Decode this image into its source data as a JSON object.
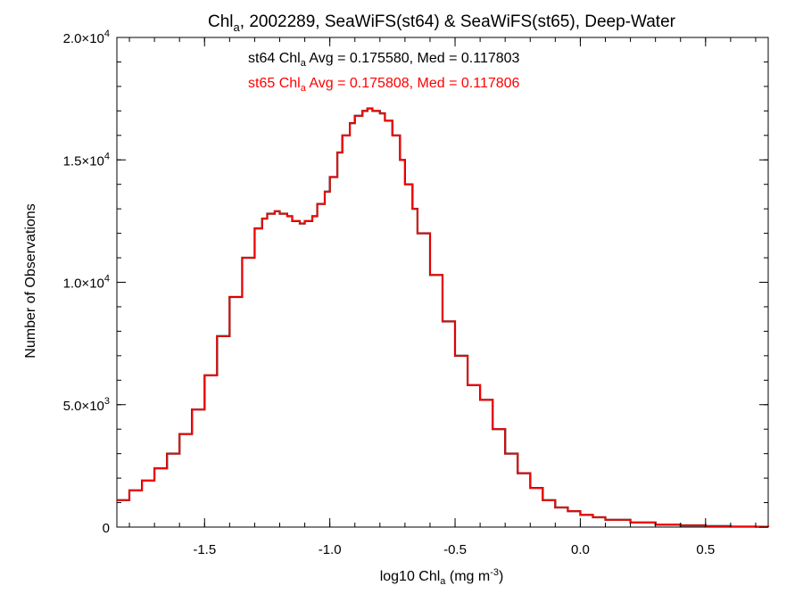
{
  "chart_data": {
    "type": "line",
    "title": {
      "prefix": "Chl",
      "sub": "a",
      "suffix": ", 2002289, SeaWiFS(st64) & SeaWiFS(st65), Deep-Water"
    },
    "xlabel": {
      "prefix": "log10 Chl",
      "sub": "a",
      "mid": " (mg m",
      "sup": "-3",
      "suffix": ")"
    },
    "ylabel": "Number of Observations",
    "xlim": [
      -1.85,
      0.75
    ],
    "ylim": [
      0,
      20000
    ],
    "x_ticks": [
      {
        "value": -1.5,
        "label": "-1.5"
      },
      {
        "value": -1.0,
        "label": "-1.0"
      },
      {
        "value": -0.5,
        "label": "-0.5"
      },
      {
        "value": 0.0,
        "label": "0.0"
      },
      {
        "value": 0.5,
        "label": "0.5"
      }
    ],
    "y_ticks": [
      {
        "value": 0,
        "mant": "0",
        "exp": ""
      },
      {
        "value": 5000,
        "mant": "5.0×10",
        "exp": "3"
      },
      {
        "value": 10000,
        "mant": "1.0×10",
        "exp": "4"
      },
      {
        "value": 15000,
        "mant": "1.5×10",
        "exp": "4"
      },
      {
        "value": 20000,
        "mant": "2.0×10",
        "exp": "4"
      }
    ],
    "annotations": [
      {
        "prefix": "st64 Chl",
        "sub": "a",
        "suffix": " Avg = 0.175580, Med = 0.117803",
        "color": "#000000"
      },
      {
        "prefix": "st65 Chl",
        "sub": "a",
        "suffix": " Avg = 0.175808, Med = 0.117806",
        "color": "#ff0000"
      }
    ],
    "series": [
      {
        "color": "#000000",
        "style": "step"
      },
      {
        "color": "#ff0000",
        "style": "step"
      }
    ],
    "x": [
      -1.85,
      -1.8,
      -1.75,
      -1.7,
      -1.65,
      -1.6,
      -1.55,
      -1.5,
      -1.45,
      -1.4,
      -1.35,
      -1.3,
      -1.27,
      -1.25,
      -1.22,
      -1.2,
      -1.17,
      -1.15,
      -1.12,
      -1.1,
      -1.07,
      -1.05,
      -1.02,
      -1.0,
      -0.97,
      -0.95,
      -0.92,
      -0.9,
      -0.87,
      -0.85,
      -0.83,
      -0.8,
      -0.78,
      -0.75,
      -0.72,
      -0.7,
      -0.67,
      -0.65,
      -0.6,
      -0.55,
      -0.5,
      -0.45,
      -0.4,
      -0.35,
      -0.3,
      -0.25,
      -0.2,
      -0.15,
      -0.1,
      -0.05,
      0.0,
      0.05,
      0.1,
      0.2,
      0.3,
      0.4,
      0.5,
      0.6,
      0.7,
      0.75
    ],
    "y": [
      1100,
      1500,
      1900,
      2400,
      3000,
      3800,
      4800,
      6200,
      7800,
      9400,
      11000,
      12200,
      12600,
      12800,
      12900,
      12800,
      12700,
      12500,
      12400,
      12500,
      12700,
      13200,
      13700,
      14300,
      15300,
      16000,
      16500,
      16800,
      17000,
      17100,
      17000,
      16900,
      16600,
      16000,
      15000,
      14000,
      13000,
      12000,
      10300,
      8400,
      7000,
      5800,
      5200,
      4000,
      3000,
      2200,
      1600,
      1100,
      800,
      650,
      500,
      400,
      300,
      190,
      100,
      70,
      40,
      20,
      10,
      5
    ]
  }
}
